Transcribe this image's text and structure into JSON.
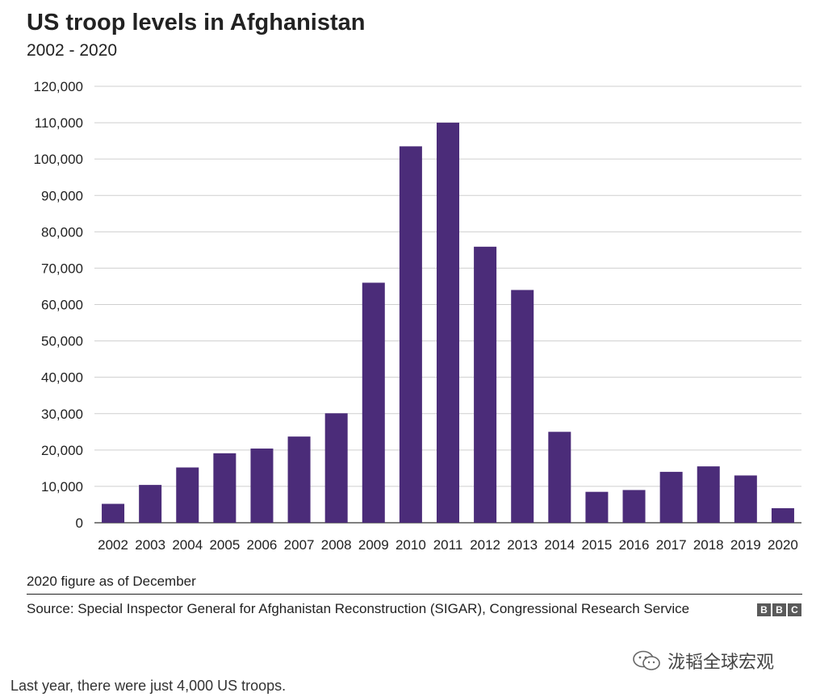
{
  "chart_data": {
    "type": "bar",
    "title": "US troop levels in Afghanistan",
    "subtitle": "2002 - 2020",
    "categories": [
      "2002",
      "2003",
      "2004",
      "2005",
      "2006",
      "2007",
      "2008",
      "2009",
      "2010",
      "2011",
      "2012",
      "2013",
      "2014",
      "2015",
      "2016",
      "2017",
      "2018",
      "2019",
      "2020"
    ],
    "values": [
      5200,
      10400,
      15200,
      19100,
      20400,
      23700,
      30100,
      66000,
      103500,
      110000,
      75900,
      64000,
      25000,
      8500,
      9000,
      14000,
      15500,
      13000,
      4000
    ],
    "ylim": [
      0,
      120000
    ],
    "yticks": [
      0,
      10000,
      20000,
      30000,
      40000,
      50000,
      60000,
      70000,
      80000,
      90000,
      100000,
      110000,
      120000
    ],
    "ytick_labels": [
      "0",
      "10,000",
      "20,000",
      "30,000",
      "40,000",
      "50,000",
      "60,000",
      "70,000",
      "80,000",
      "90,000",
      "100,000",
      "110,000",
      "120,000"
    ],
    "xlabel": "",
    "ylabel": "",
    "grid": true,
    "bar_color": "#4b2c79",
    "note": "2020 figure as of December",
    "source": "Source: Special Inspector General for Afghanistan Reconstruction (SIGAR), Congressional Research Service"
  },
  "branding": {
    "logo_letters": [
      "B",
      "B",
      "C"
    ],
    "watermark": "泷韬全球宏观"
  },
  "caption": "Last year, there were just 4,000 US troops."
}
